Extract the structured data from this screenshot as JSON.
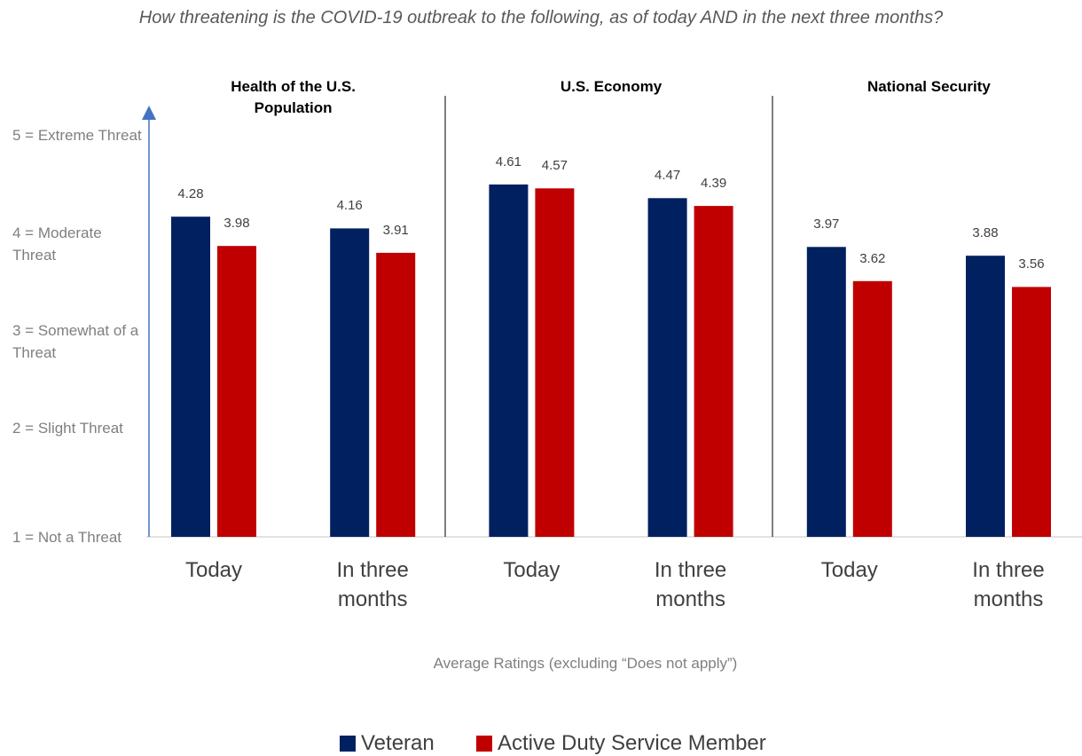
{
  "chart_data": {
    "type": "bar",
    "title": "How threatening is the COVID-19 outbreak to the following, as of today AND in the next three months?",
    "groups": [
      "Health of the U.S. Population",
      "U.S. Economy",
      "National Security"
    ],
    "categories": [
      "Today",
      "In three months",
      "Today",
      "In three months",
      "Today",
      "In three months"
    ],
    "series": [
      {
        "name": "Veteran",
        "color": "#002060",
        "values": [
          4.28,
          4.16,
          4.61,
          4.47,
          3.97,
          3.88
        ]
      },
      {
        "name": "Active Duty Service Member",
        "color": "#c00000",
        "values": [
          3.98,
          3.91,
          4.57,
          4.39,
          3.62,
          3.56
        ]
      }
    ],
    "x_label": "Average Ratings (excluding “Does not apply”)",
    "ylim": [
      1,
      5.4
    ],
    "yticks": [
      {
        "value": 1,
        "label": "1 = Not a Threat"
      },
      {
        "value": 2,
        "label": "2 = Slight Threat"
      },
      {
        "value": 3,
        "label": "3 = Somewhat of a Threat"
      },
      {
        "value": 4,
        "label": "4 = Moderate Threat"
      },
      {
        "value": 5,
        "label": "5 = Extreme Threat"
      }
    ],
    "legend": "bottom"
  }
}
